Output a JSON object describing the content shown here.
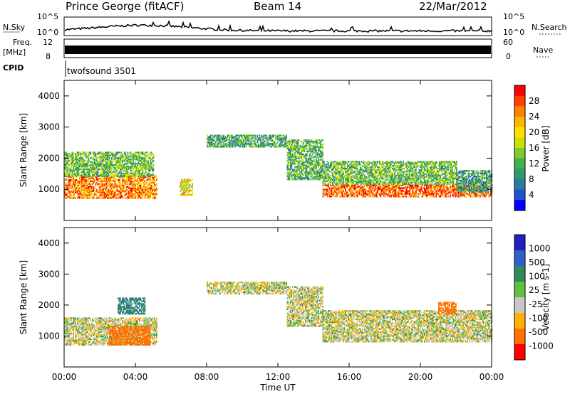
{
  "header": {
    "station": "Prince George (fitACF)",
    "beam": "Beam 14",
    "date": "22/Mar/2012"
  },
  "top_panels": {
    "nsky_label": "N.Sky",
    "nsky_ticks": [
      "10^5",
      "10^0"
    ],
    "nsearch_label": "N.Search",
    "nsearch_ticks": [
      "10^5",
      "10^0"
    ],
    "freq_label": "Freq.",
    "freq_unit": "[MHz]",
    "freq_ticks": [
      "12",
      "8"
    ],
    "nave_label": "Nave",
    "nave_ticks": [
      "60",
      "0"
    ],
    "cpid_label": "CPID",
    "cpid_value": "twofsound 3501"
  },
  "colorbars": {
    "power": {
      "label": "Power [dB]",
      "ticks": [
        "28",
        "24",
        "20",
        "16",
        "12",
        "8",
        "4"
      ],
      "colors": [
        "#ff0000",
        "#ff4000",
        "#ff8000",
        "#ffb400",
        "#ffe000",
        "#c8e100",
        "#7ccc2c",
        "#40b050",
        "#2f9a6c",
        "#2d7aa0",
        "#1e50d0",
        "#0000ff"
      ]
    },
    "velocity": {
      "label": "Velocity [m s-1]",
      "ticks": [
        "1000",
        "500",
        "100",
        "25",
        "-25",
        "-100",
        "-500",
        "-1000"
      ],
      "colors": [
        "#2020c0",
        "#3060c8",
        "#2f8a60",
        "#60c040",
        "#c8c8c8",
        "#ffb000",
        "#ff7000",
        "#ff0000"
      ]
    }
  },
  "chart_data": [
    {
      "type": "heatmap",
      "title": "Power",
      "ylabel": "Slant Range [km]",
      "ylim": [
        0,
        4500
      ],
      "yticks": [
        "1000",
        "2000",
        "3000",
        "4000"
      ],
      "xlim_hours": [
        0,
        24
      ],
      "zlim": [
        0,
        30
      ],
      "z_unit": "dB",
      "regions": [
        {
          "t": [
            0,
            5.2
          ],
          "range": [
            700,
            1450
          ],
          "z": 24
        },
        {
          "t": [
            0,
            5.0
          ],
          "range": [
            1400,
            2200
          ],
          "z": 12
        },
        {
          "t": [
            6.5,
            7.2
          ],
          "range": [
            800,
            1300
          ],
          "z": 18
        },
        {
          "t": [
            8.0,
            12.5
          ],
          "range": [
            2350,
            2750
          ],
          "z": 10
        },
        {
          "t": [
            12.5,
            14.5
          ],
          "range": [
            1300,
            2600
          ],
          "z": 11
        },
        {
          "t": [
            14.5,
            24
          ],
          "range": [
            750,
            1150
          ],
          "z": 26
        },
        {
          "t": [
            14.5,
            22
          ],
          "range": [
            1150,
            1900
          ],
          "z": 12
        },
        {
          "t": [
            22,
            24
          ],
          "range": [
            900,
            1600
          ],
          "z": 9
        }
      ]
    },
    {
      "type": "heatmap",
      "title": "Velocity",
      "ylabel": "Slant Range [km]",
      "ylim": [
        0,
        4500
      ],
      "yticks": [
        "1000",
        "2000",
        "3000",
        "4000"
      ],
      "xlim_hours": [
        0,
        24
      ],
      "z_unit": "m s-1",
      "regions": [
        {
          "t": [
            0,
            5.2
          ],
          "range": [
            700,
            1600
          ],
          "z": 0
        },
        {
          "t": [
            2.5,
            4.8
          ],
          "range": [
            700,
            1300
          ],
          "z": -300
        },
        {
          "t": [
            3.0,
            4.5
          ],
          "range": [
            1700,
            2200
          ],
          "z": 200
        },
        {
          "t": [
            8.0,
            12.5
          ],
          "range": [
            2350,
            2750
          ],
          "z": 0
        },
        {
          "t": [
            12.5,
            14.5
          ],
          "range": [
            1300,
            2600
          ],
          "z": 0
        },
        {
          "t": [
            14.5,
            24
          ],
          "range": [
            800,
            1800
          ],
          "z": 0
        },
        {
          "t": [
            21.0,
            22.0
          ],
          "range": [
            1700,
            2100
          ],
          "z": -200
        }
      ],
      "xticks": [
        "00:00",
        "04:00",
        "08:00",
        "12:00",
        "16:00",
        "20:00",
        "00:00"
      ],
      "xlabel": "Time UT"
    }
  ]
}
